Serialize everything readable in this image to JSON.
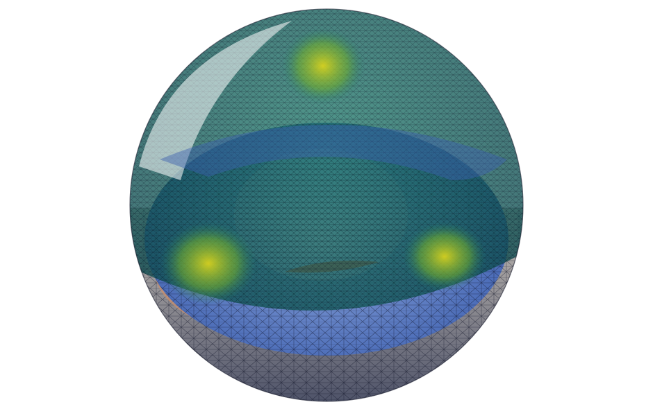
{
  "scene": {
    "subject": "sphere-cutaway-mesh",
    "colors": {
      "background": "#ffffff",
      "outer_shell_dark": "#0d4a4f",
      "outer_shell_mid": "#1f7a6a",
      "hotspot_yellow": "#d8d21e",
      "hotspot_green": "#6fae2f",
      "cut_plane_blue": "#3c5fb0",
      "cut_plane_light": "#8aa3d8",
      "inner_sphere": "#6f86c2",
      "rim_orange": "#c4532c",
      "lower_shell_grey": "#a9a39c",
      "mesh_line": "#0b0f22"
    },
    "hotspot_count": 3
  }
}
